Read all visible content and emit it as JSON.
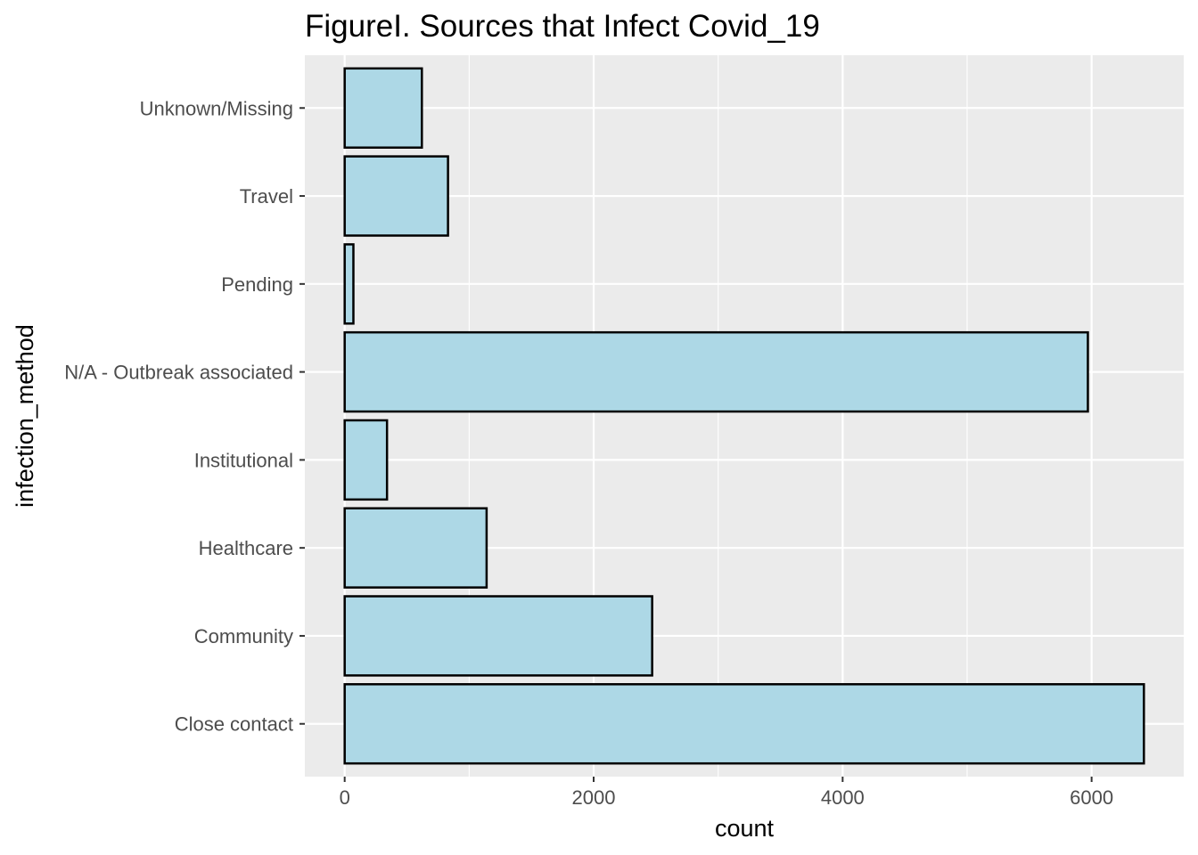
{
  "chart_data": {
    "type": "bar",
    "orientation": "horizontal",
    "title": "FigureI. Sources that Infect Covid_19",
    "xlabel": "count",
    "ylabel": "infection_method",
    "categories": [
      "Close contact",
      "Community",
      "Healthcare",
      "Institutional",
      "N/A - Outbreak associated",
      "Pending",
      "Travel",
      "Unknown/Missing"
    ],
    "values": [
      6420,
      2470,
      1140,
      340,
      5970,
      70,
      830,
      620
    ],
    "x_ticks": [
      0,
      2000,
      4000,
      6000
    ],
    "xlim": [
      -320,
      6740
    ],
    "grid": true,
    "legend": "none",
    "colors": {
      "bar_fill": "#ADD8E6",
      "bar_stroke": "#000000",
      "panel_background": "#EBEBEB",
      "grid": "#FFFFFF",
      "tick_text": "#4D4D4D"
    }
  }
}
